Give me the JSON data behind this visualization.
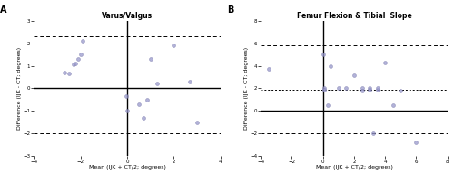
{
  "plot_A": {
    "title": "Varus/Valgus",
    "label": "A",
    "data_x": [
      -2.7,
      -2.5,
      -2.3,
      -2.2,
      -2.1,
      -2.0,
      -1.9,
      -0.05,
      0.0,
      0.5,
      0.7,
      0.85,
      1.0,
      1.3,
      2.0,
      2.7,
      3.0
    ],
    "data_y": [
      0.7,
      0.65,
      1.05,
      1.1,
      1.3,
      1.5,
      2.1,
      -0.35,
      -1.0,
      -0.7,
      -1.3,
      -0.5,
      1.3,
      0.2,
      1.9,
      0.3,
      -1.5
    ],
    "mean_line": 0.0,
    "upper_loa": 2.3,
    "lower_loa": -2.0,
    "xlim": [
      -4,
      4
    ],
    "ylim": [
      -3,
      3
    ],
    "xticks": [
      -4,
      -2,
      0,
      2,
      4
    ],
    "yticks": [
      -3,
      -2,
      -1,
      0,
      1,
      2,
      3
    ],
    "xlabel": "Mean (IJK + CT/2; degrees)",
    "ylabel": "Difference (IJK - CT; degrees)",
    "vline_x": 0,
    "hline_y": 0
  },
  "plot_B": {
    "title": "Femur Flexion & Tibial  Slope",
    "label": "B",
    "data_x": [
      -3.5,
      0.0,
      0.05,
      0.1,
      0.3,
      0.5,
      1.0,
      1.5,
      2.0,
      2.5,
      2.5,
      3.0,
      3.0,
      3.2,
      3.5,
      3.5,
      4.0,
      4.5,
      5.0,
      6.0
    ],
    "data_y": [
      3.7,
      5.0,
      2.0,
      1.9,
      0.5,
      4.0,
      2.0,
      2.0,
      3.2,
      2.0,
      1.8,
      2.0,
      1.9,
      -2.0,
      1.9,
      2.0,
      4.3,
      0.5,
      1.8,
      -2.8
    ],
    "mean_line": 1.9,
    "upper_loa": 5.8,
    "lower_loa": -2.0,
    "xlim": [
      -4,
      8
    ],
    "ylim": [
      -4,
      8
    ],
    "xticks": [
      -4,
      -2,
      0,
      2,
      4,
      6,
      8
    ],
    "yticks": [
      -4,
      -2,
      0,
      2,
      4,
      6,
      8
    ],
    "xlabel": "Mean (IJK + CT/2; degrees)",
    "ylabel": "Difference (IJK - CT; degrees)",
    "vline_x": 0,
    "hline_y": 0
  },
  "scatter_color": "#9999cc",
  "scatter_edge": "#7777aa",
  "scatter_size": 8,
  "scatter_alpha": 0.75,
  "dashed_color": "black",
  "dotted_color": "black",
  "solid_color": "black",
  "background": "white",
  "title_fontsize": 5.5,
  "label_fontsize": 4.5,
  "tick_fontsize": 4.0,
  "axlabel_fontsize": 4.5,
  "panel_label_fontsize": 7
}
